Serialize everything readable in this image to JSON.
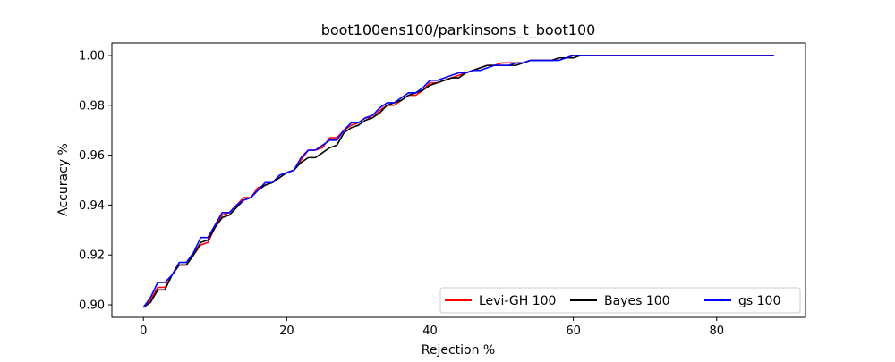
{
  "chart_data": {
    "type": "line",
    "title": "boot100ens100/parkinsons_t_boot100",
    "xlabel": "Rejection %",
    "ylabel": "Accuracy %",
    "xlim": [
      -4.4,
      92.4
    ],
    "ylim": [
      0.895,
      1.005
    ],
    "xticks": [
      0,
      20,
      40,
      60,
      80
    ],
    "xtick_labels": [
      "0",
      "20",
      "40",
      "60",
      "80"
    ],
    "yticks": [
      0.9,
      0.92,
      0.94,
      0.96,
      0.98,
      1.0
    ],
    "ytick_labels": [
      "0.90",
      "0.92",
      "0.94",
      "0.96",
      "0.98",
      "1.00"
    ],
    "grid": false,
    "legend_placement": "lower-right",
    "x": [
      0,
      1,
      2,
      3,
      4,
      5,
      6,
      7,
      8,
      9,
      10,
      11,
      12,
      13,
      14,
      15,
      16,
      17,
      18,
      19,
      20,
      21,
      22,
      23,
      24,
      25,
      26,
      27,
      28,
      29,
      30,
      31,
      32,
      33,
      34,
      35,
      36,
      37,
      38,
      39,
      40,
      41,
      42,
      43,
      44,
      45,
      46,
      47,
      48,
      49,
      50,
      51,
      52,
      53,
      54,
      55,
      56,
      57,
      58,
      59,
      60,
      61,
      62,
      63,
      64,
      65,
      66,
      67,
      68,
      69,
      70,
      71,
      72,
      73,
      74,
      75,
      76,
      77,
      78,
      79,
      80,
      81,
      82,
      83,
      84,
      85,
      86,
      87,
      88
    ],
    "series": [
      {
        "name": "Levi-GH 100",
        "color": "#ff0000",
        "values": [
          0.899,
          0.902,
          0.907,
          0.907,
          0.912,
          0.916,
          0.916,
          0.92,
          0.924,
          0.925,
          0.931,
          0.936,
          0.937,
          0.94,
          0.943,
          0.943,
          0.947,
          0.948,
          0.949,
          0.951,
          0.953,
          0.954,
          0.958,
          0.962,
          0.962,
          0.963,
          0.967,
          0.967,
          0.97,
          0.972,
          0.973,
          0.975,
          0.975,
          0.978,
          0.98,
          0.98,
          0.982,
          0.984,
          0.984,
          0.986,
          0.989,
          0.989,
          0.99,
          0.991,
          0.992,
          0.993,
          0.994,
          0.995,
          0.996,
          0.996,
          0.997,
          0.997,
          0.997,
          0.997,
          0.998,
          0.998,
          0.998,
          0.998,
          0.999,
          0.999,
          1.0,
          1.0,
          1.0,
          1.0,
          1.0,
          1.0,
          1.0,
          1.0,
          1.0,
          1.0,
          1.0,
          1.0,
          1.0,
          1.0,
          1.0,
          1.0,
          1.0,
          1.0,
          1.0,
          1.0,
          1.0,
          1.0,
          1.0,
          1.0,
          1.0,
          1.0,
          1.0,
          1.0,
          1.0
        ]
      },
      {
        "name": "Bayes 100",
        "color": "#000000",
        "values": [
          0.899,
          0.901,
          0.906,
          0.906,
          0.912,
          0.916,
          0.916,
          0.92,
          0.925,
          0.926,
          0.931,
          0.935,
          0.936,
          0.939,
          0.942,
          0.943,
          0.946,
          0.948,
          0.949,
          0.951,
          0.953,
          0.954,
          0.957,
          0.959,
          0.959,
          0.961,
          0.963,
          0.964,
          0.969,
          0.971,
          0.972,
          0.974,
          0.975,
          0.977,
          0.98,
          0.981,
          0.982,
          0.984,
          0.985,
          0.986,
          0.988,
          0.989,
          0.99,
          0.991,
          0.991,
          0.993,
          0.994,
          0.995,
          0.996,
          0.996,
          0.996,
          0.996,
          0.996,
          0.997,
          0.998,
          0.998,
          0.998,
          0.998,
          0.999,
          0.999,
          0.999,
          1.0,
          1.0,
          1.0,
          1.0,
          1.0,
          1.0,
          1.0,
          1.0,
          1.0,
          1.0,
          1.0,
          1.0,
          1.0,
          1.0,
          1.0,
          1.0,
          1.0,
          1.0,
          1.0,
          1.0,
          1.0,
          1.0,
          1.0,
          1.0,
          1.0,
          1.0,
          1.0,
          1.0
        ]
      },
      {
        "name": "gs 100",
        "color": "#0000ff",
        "values": [
          0.899,
          0.903,
          0.909,
          0.909,
          0.912,
          0.917,
          0.917,
          0.921,
          0.927,
          0.927,
          0.932,
          0.937,
          0.937,
          0.94,
          0.942,
          0.943,
          0.946,
          0.949,
          0.949,
          0.952,
          0.953,
          0.954,
          0.959,
          0.962,
          0.962,
          0.964,
          0.966,
          0.966,
          0.97,
          0.973,
          0.973,
          0.975,
          0.976,
          0.979,
          0.981,
          0.981,
          0.983,
          0.985,
          0.985,
          0.987,
          0.99,
          0.99,
          0.991,
          0.992,
          0.993,
          0.993,
          0.994,
          0.994,
          0.995,
          0.996,
          0.996,
          0.996,
          0.997,
          0.997,
          0.998,
          0.998,
          0.998,
          0.998,
          0.998,
          0.999,
          1.0,
          1.0,
          1.0,
          1.0,
          1.0,
          1.0,
          1.0,
          1.0,
          1.0,
          1.0,
          1.0,
          1.0,
          1.0,
          1.0,
          1.0,
          1.0,
          1.0,
          1.0,
          1.0,
          1.0,
          1.0,
          1.0,
          1.0,
          1.0,
          1.0,
          1.0,
          1.0,
          1.0,
          1.0
        ]
      }
    ]
  }
}
